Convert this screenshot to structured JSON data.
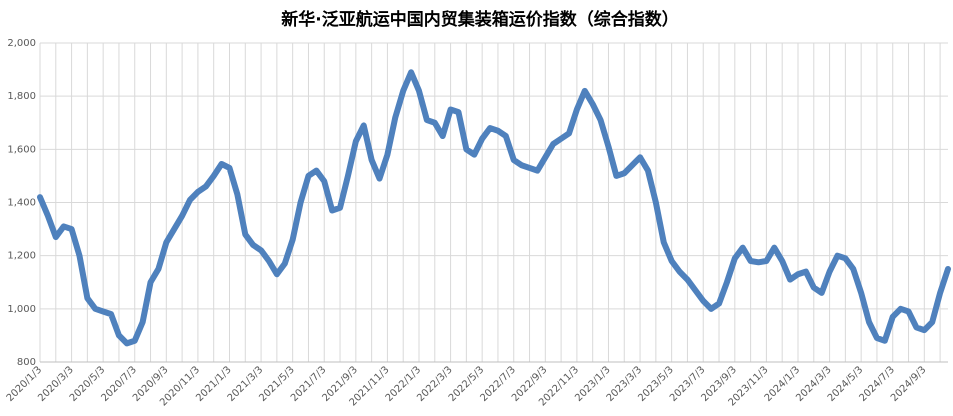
{
  "chart_data": {
    "type": "line",
    "title": "新华·泛亚航运中国内贸集装箱运价指数（综合指数）",
    "categories": [
      "2020/1/3",
      null,
      null,
      null,
      "2020/3/3",
      null,
      null,
      null,
      "2020/5/3",
      null,
      null,
      null,
      "2020/7/3",
      null,
      null,
      null,
      "2020/9/3",
      null,
      null,
      null,
      "2020/11/3",
      null,
      null,
      null,
      "2021/1/3",
      null,
      null,
      null,
      "2021/3/3",
      null,
      null,
      null,
      "2021/5/3",
      null,
      null,
      null,
      "2021/7/3",
      null,
      null,
      null,
      "2021/9/3",
      null,
      null,
      null,
      "2021/11/3",
      null,
      null,
      null,
      "2022/1/3",
      null,
      null,
      null,
      "2022/3/3",
      null,
      null,
      null,
      "2022/5/3",
      null,
      null,
      null,
      "2022/7/3",
      null,
      null,
      null,
      "2022/9/3",
      null,
      null,
      null,
      "2022/11/3",
      null,
      null,
      null,
      "2023/1/3",
      null,
      null,
      null,
      "2023/3/3",
      null,
      null,
      null,
      "2023/5/3",
      null,
      null,
      null,
      "2023/7/3",
      null,
      null,
      null,
      "2023/9/3",
      null,
      null,
      null,
      "2023/11/3",
      null,
      null,
      null,
      "2024/1/3",
      null,
      null,
      null,
      "2024/3/3",
      null,
      null,
      null,
      "2024/5/3",
      null,
      null,
      null,
      "2024/7/3",
      null,
      null,
      null,
      "2024/9/3",
      null,
      null,
      null
    ],
    "series": [
      {
        "name": "综合指数",
        "color": "#4f81bd",
        "values": [
          1420,
          1350,
          1270,
          1310,
          1300,
          1200,
          1040,
          1000,
          990,
          980,
          900,
          870,
          880,
          950,
          1100,
          1150,
          1250,
          1300,
          1350,
          1410,
          1440,
          1460,
          1500,
          1545,
          1530,
          1430,
          1280,
          1240,
          1220,
          1180,
          1130,
          1170,
          1260,
          1400,
          1500,
          1520,
          1480,
          1370,
          1380,
          1500,
          1630,
          1690,
          1560,
          1490,
          1580,
          1720,
          1820,
          1890,
          1820,
          1710,
          1700,
          1650,
          1750,
          1740,
          1600,
          1580,
          1640,
          1680,
          1670,
          1650,
          1560,
          1540,
          1530,
          1520,
          1570,
          1620,
          1640,
          1660,
          1750,
          1820,
          1770,
          1710,
          1610,
          1500,
          1510,
          1540,
          1570,
          1520,
          1400,
          1250,
          1180,
          1140,
          1110,
          1070,
          1030,
          1000,
          1020,
          1100,
          1190,
          1230,
          1180,
          1175,
          1180,
          1230,
          1180,
          1110,
          1130,
          1140,
          1080,
          1060,
          1140,
          1200,
          1190,
          1150,
          1060,
          950,
          890,
          880,
          970,
          1000,
          990,
          930,
          920,
          950,
          1060,
          1150
        ]
      }
    ],
    "ylim": [
      800,
      2000
    ],
    "yticks": [
      800,
      {
        "value": 1000,
        "label": "1,000"
      },
      {
        "value": 1200,
        "label": "1,200"
      },
      {
        "value": 1400,
        "label": "1,400"
      },
      {
        "value": 1600,
        "label": "1,600"
      },
      {
        "value": 1800,
        "label": "1,800"
      },
      {
        "value": 2000,
        "label": "2,000"
      }
    ],
    "grid": true
  }
}
